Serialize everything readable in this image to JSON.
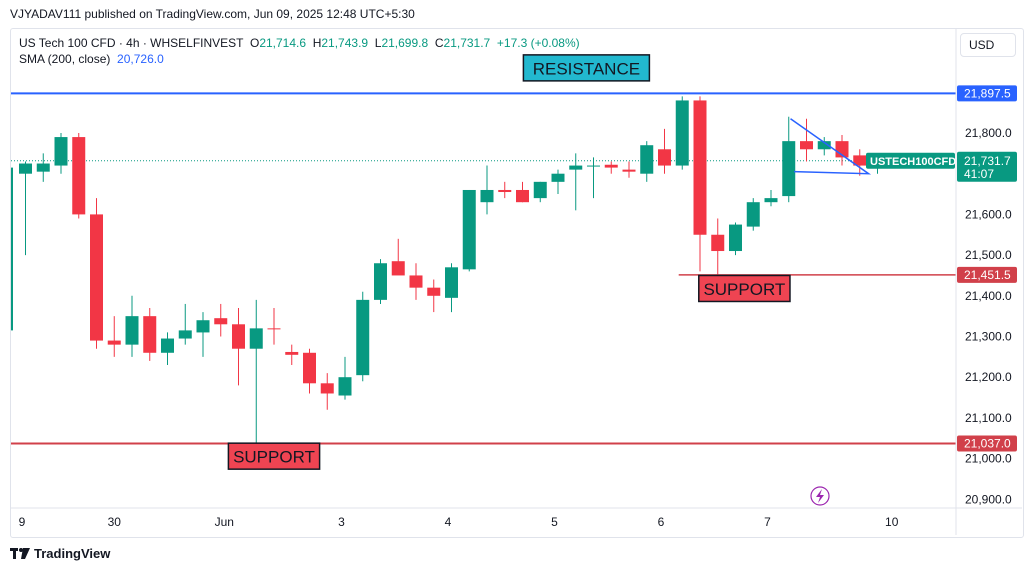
{
  "publisher": "VJYADAV111 published on TradingView.com, Jun 09, 2025 12:48 UTC+5:30",
  "legend": {
    "symbol": "US Tech 100 CFD · 4h · WHSELFINVEST",
    "o_label": "O",
    "o": "21,714.6",
    "h_label": "H",
    "h": "21,743.9",
    "l_label": "L",
    "l": "21,699.8",
    "c_label": "C",
    "c": "21,731.7",
    "change": "+17.3 (+0.08%)",
    "sma": "SMA (200, close)",
    "sma_value": "20,726.0"
  },
  "currency": "USD",
  "footer": "TradingView",
  "colors": {
    "up": "#089981",
    "down": "#f23645",
    "resistance": "#2962ff",
    "support": "#d1404a",
    "triangle": "#2962ff"
  },
  "chart_data": {
    "type": "candlestick",
    "ylim": [
      20850,
      21950
    ],
    "yticks": [
      "21,800.0",
      "21,700.0",
      "21,600.0",
      "21,500.0",
      "21,400.0",
      "21,300.0",
      "21,200.0",
      "21,100.0",
      "21,000.0",
      "20,900.0"
    ],
    "ytick_values": [
      21800,
      21700,
      21600,
      21500,
      21400,
      21300,
      21200,
      21100,
      21000,
      20900
    ],
    "xticks": [
      {
        "label": "9",
        "index": -0.2
      },
      {
        "label": "30",
        "index": 5
      },
      {
        "label": "Jun",
        "index": 11.2
      },
      {
        "label": "3",
        "index": 17.8
      },
      {
        "label": "4",
        "index": 23.8
      },
      {
        "label": "5",
        "index": 29.8
      },
      {
        "label": "6",
        "index": 35.8
      },
      {
        "label": "7",
        "index": 41.8
      },
      {
        "label": "10",
        "index": 48.8
      }
    ],
    "candles": [
      [
        21700,
        21730,
        21500,
        21725
      ],
      [
        21705,
        21750,
        21680,
        21725
      ],
      [
        21720,
        21800,
        21700,
        21790
      ],
      [
        21790,
        21800,
        21590,
        21600
      ],
      [
        21600,
        21640,
        21270,
        21290
      ],
      [
        21290,
        21350,
        21250,
        21280
      ],
      [
        21280,
        21400,
        21250,
        21350
      ],
      [
        21350,
        21370,
        21240,
        21260
      ],
      [
        21260,
        21310,
        21230,
        21295
      ],
      [
        21295,
        21380,
        21280,
        21315
      ],
      [
        21310,
        21360,
        21250,
        21340
      ],
      [
        21345,
        21380,
        21300,
        21330
      ],
      [
        21330,
        21370,
        21180,
        21270
      ],
      [
        21270,
        21390,
        21030,
        21320
      ],
      [
        21320,
        21370,
        21280,
        21318
      ],
      [
        21262,
        21280,
        21230,
        21255
      ],
      [
        21260,
        21270,
        21160,
        21185
      ],
      [
        21185,
        21210,
        21120,
        21160
      ],
      [
        21155,
        21250,
        21145,
        21200
      ],
      [
        21205,
        21410,
        21190,
        21390
      ],
      [
        21390,
        21490,
        21380,
        21480
      ],
      [
        21485,
        21540,
        21460,
        21450
      ],
      [
        21450,
        21480,
        21390,
        21420
      ],
      [
        21420,
        21440,
        21360,
        21400
      ],
      [
        21395,
        21480,
        21360,
        21470
      ],
      [
        21465,
        21660,
        21460,
        21660
      ],
      [
        21630,
        21720,
        21600,
        21660
      ],
      [
        21660,
        21680,
        21640,
        21655
      ],
      [
        21660,
        21680,
        21630,
        21630
      ],
      [
        21640,
        21680,
        21630,
        21680
      ],
      [
        21680,
        21710,
        21650,
        21700
      ],
      [
        21710,
        21750,
        21610,
        21720
      ],
      [
        21720,
        21740,
        21640,
        21720
      ],
      [
        21722,
        21730,
        21700,
        21715
      ],
      [
        21710,
        21730,
        21690,
        21705
      ],
      [
        21700,
        21780,
        21680,
        21770
      ],
      [
        21760,
        21810,
        21700,
        21720
      ],
      [
        21720,
        21890,
        21710,
        21880
      ],
      [
        21880,
        21890,
        21460,
        21550
      ],
      [
        21550,
        21590,
        21450,
        21510
      ],
      [
        21510,
        21580,
        21500,
        21575
      ],
      [
        21570,
        21640,
        21560,
        21630
      ],
      [
        21630,
        21660,
        21620,
        21640
      ],
      [
        21645,
        21840,
        21630,
        21780
      ],
      [
        21780,
        21835,
        21730,
        21760
      ],
      [
        21760,
        21790,
        21745,
        21780
      ],
      [
        21780,
        21795,
        21720,
        21740
      ],
      [
        21745,
        21760,
        21695,
        21720
      ],
      [
        21715,
        21744,
        21700,
        21732
      ]
    ],
    "price_labels": [
      {
        "value": 21897.5,
        "text": "21,897.5",
        "color": "#2962ff"
      },
      {
        "value": 21451.5,
        "text": "21,451.5",
        "color": "#d1404a"
      },
      {
        "value": 21037.0,
        "text": "21,037.0",
        "color": "#d1404a"
      }
    ],
    "last_price": {
      "value": 21731.7,
      "text": "21,731.7",
      "countdown": "41:07",
      "ticker": "USTECH100CFD"
    },
    "annotations": [
      {
        "text": "RESISTANCE",
        "bg": "#22b8cf",
        "index": 31.6,
        "value": 21960
      },
      {
        "text": "SUPPORT",
        "bg": "#ef4452",
        "index": 40.5,
        "value": 21418
      },
      {
        "text": "SUPPORT",
        "bg": "#ef4452",
        "index": 14.0,
        "value": 21006
      }
    ]
  }
}
